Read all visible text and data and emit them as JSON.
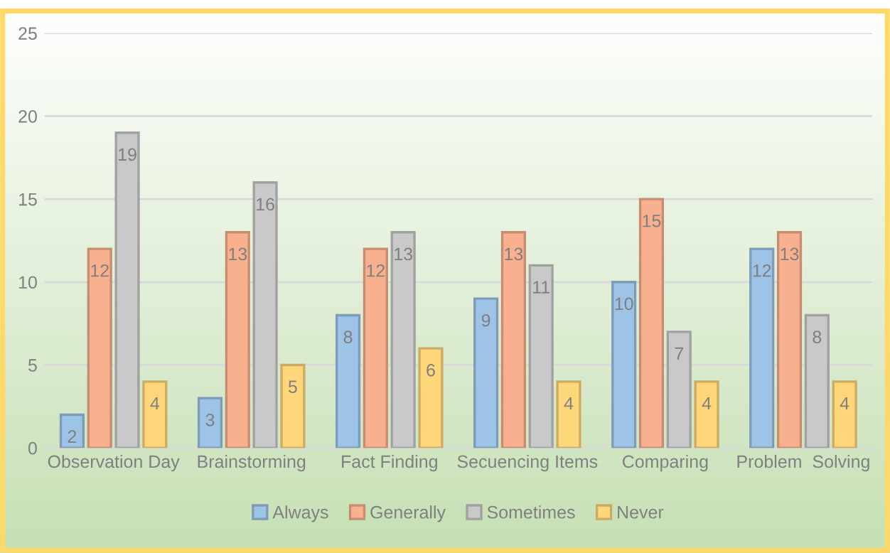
{
  "chart_data": {
    "type": "bar",
    "categories": [
      "Observation Day",
      "Brainstorming",
      "Fact Finding",
      "Secuencing Items",
      "Comparing",
      "Problem  Solving"
    ],
    "series": [
      {
        "name": "Always",
        "color": "#9dc3e6",
        "values": [
          2,
          3,
          8,
          9,
          10,
          12
        ]
      },
      {
        "name": "Generally",
        "color": "#f8b08e",
        "values": [
          12,
          13,
          12,
          13,
          15,
          13
        ]
      },
      {
        "name": "Sometimes",
        "color": "#c9c9c9",
        "values": [
          19,
          16,
          13,
          11,
          7,
          8
        ]
      },
      {
        "name": "Never",
        "color": "#ffd77a",
        "values": [
          4,
          5,
          6,
          4,
          4,
          4
        ]
      }
    ],
    "ylim": [
      0,
      25
    ],
    "yticks": [
      0,
      5,
      10,
      15,
      20,
      25
    ],
    "grid": "y",
    "legend": "bottom",
    "data_labels": true
  }
}
